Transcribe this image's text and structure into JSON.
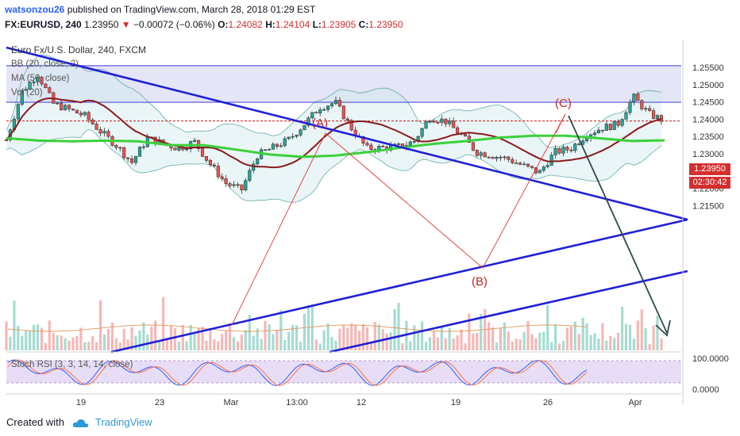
{
  "header": {
    "username": "watsonzou26",
    "published_text": "published on TradingView.com, March 28, 2018 01:29 EST",
    "symbol": "FX:EURUSD, 240",
    "last_price": "1.23950",
    "change": "−0.00072 (−0.06%)",
    "ohlc": {
      "open_label": "O:",
      "open": "1.24082",
      "high_label": "H:",
      "high": "1.24104",
      "low_label": "L:",
      "low": "1.23905",
      "close_label": "C:",
      "close": "1.23950"
    }
  },
  "legend": {
    "instrument": "Euro Fx/U.S. Dollar, 240, FXCM",
    "bb": "BB (20, close, 2)",
    "ma": "MA (50, close)",
    "vol": "Vol (20)"
  },
  "stoch_label": "Stoch RSI (3, 3, 14, 14, close)",
  "price_tag": {
    "price": "1.23950",
    "countdown": "02:30:42"
  },
  "annotations": {
    "a": "(A)",
    "b": "(B)",
    "c": "(C)"
  },
  "price_axis": [
    "1.25500",
    "1.25000",
    "1.24500",
    "1.24000",
    "1.23500",
    "1.23000",
    "1.22500",
    "1.22000",
    "1.21500"
  ],
  "stoch_axis": [
    "100.0000",
    "0.0000"
  ],
  "time_axis": [
    "19",
    "23",
    "Mar",
    "13:00",
    "12",
    "19",
    "26",
    "Apr"
  ],
  "footer": {
    "created_with": "Created with",
    "brand": "TradingView"
  },
  "colors": {
    "bullish": "#26a69a",
    "bearish": "#ef5350",
    "trendline": "#1f1fd6",
    "ma": "#3ad13a",
    "basis": "#8b1a1a",
    "projection": "#2d4a4a",
    "accent": "#d32f2f"
  },
  "chart_data": {
    "type": "candlestick",
    "symbol": "EURUSD",
    "interval": "240",
    "y_range": [
      1.211,
      1.2575
    ],
    "close_path": [
      {
        "x": "Feb 14",
        "y": 1.234
      },
      {
        "x": "Feb 15",
        "y": 1.248
      },
      {
        "x": "Feb 16",
        "y": 1.253
      },
      {
        "x": "Feb 17",
        "y": 1.2445
      },
      {
        "x": "Feb 19",
        "y": 1.241
      },
      {
        "x": "Feb 20",
        "y": 1.2365
      },
      {
        "x": "Feb 21",
        "y": 1.2325
      },
      {
        "x": "Feb 22",
        "y": 1.2275
      },
      {
        "x": "Feb 23",
        "y": 1.2345
      },
      {
        "x": "Feb 25",
        "y": 1.2315
      },
      {
        "x": "Feb 26",
        "y": 1.2335
      },
      {
        "x": "Feb 27",
        "y": 1.227
      },
      {
        "x": "Feb 28",
        "y": 1.2215
      },
      {
        "x": "Mar 1",
        "y": 1.2195
      },
      {
        "x": "Mar 2",
        "y": 1.2295
      },
      {
        "x": "Mar 4",
        "y": 1.234
      },
      {
        "x": "Mar 5",
        "y": 1.2385
      },
      {
        "x": "Mar 6",
        "y": 1.2435
      },
      {
        "x": "Mar 7",
        "y": 1.2448
      },
      {
        "x": "Mar 8",
        "y": 1.2375
      },
      {
        "x": "Mar 9",
        "y": 1.2315
      },
      {
        "x": "Mar 11",
        "y": 1.232
      },
      {
        "x": "Mar 12",
        "y": 1.2335
      },
      {
        "x": "Mar 13",
        "y": 1.2405
      },
      {
        "x": "Mar 14",
        "y": 1.2395
      },
      {
        "x": "Mar 15",
        "y": 1.2355
      },
      {
        "x": "Mar 16",
        "y": 1.2305
      },
      {
        "x": "Mar 18",
        "y": 1.2285
      },
      {
        "x": "Mar 19",
        "y": 1.2265
      },
      {
        "x": "Mar 20",
        "y": 1.2245
      },
      {
        "x": "Mar 21",
        "y": 1.2305
      },
      {
        "x": "Mar 22",
        "y": 1.2315
      },
      {
        "x": "Mar 23",
        "y": 1.2355
      },
      {
        "x": "Mar 24",
        "y": 1.2375
      },
      {
        "x": "Mar 25",
        "y": 1.2385
      },
      {
        "x": "Mar 26",
        "y": 1.2465
      },
      {
        "x": "Mar 27",
        "y": 1.2415
      },
      {
        "x": "Mar 28",
        "y": 1.2395
      }
    ],
    "ma50": [
      1.2345,
      1.2338,
      1.2336,
      1.2338,
      1.2336,
      1.2325,
      1.2325,
      1.2312,
      1.2298,
      1.2291,
      1.2295,
      1.2305,
      1.2318,
      1.2329,
      1.2337,
      1.2347,
      1.2352,
      1.2352,
      1.2345,
      1.2337,
      1.2339
    ],
    "ma50_x_range": [
      "Feb 14",
      "Mar 28"
    ],
    "annotations": [
      {
        "label": "(A)",
        "x": "Mar 7",
        "y": 1.2452
      },
      {
        "label": "(B)",
        "x": "Mar 21",
        "y": 1.2234
      },
      {
        "label": "(C)",
        "x": "Mar 27",
        "y": 1.2478
      }
    ],
    "horizontal_levels": [
      1.2555,
      1.2449,
      1.2395
    ],
    "price_ticks": [
      1.255,
      1.25,
      1.245,
      1.24,
      1.235,
      1.23,
      1.225,
      1.22,
      1.215
    ],
    "stoch_rsi_range": [
      0,
      100
    ],
    "time_ticks": [
      "19",
      "23",
      "Mar",
      "13:00",
      "12",
      "19",
      "26",
      "Apr"
    ]
  }
}
